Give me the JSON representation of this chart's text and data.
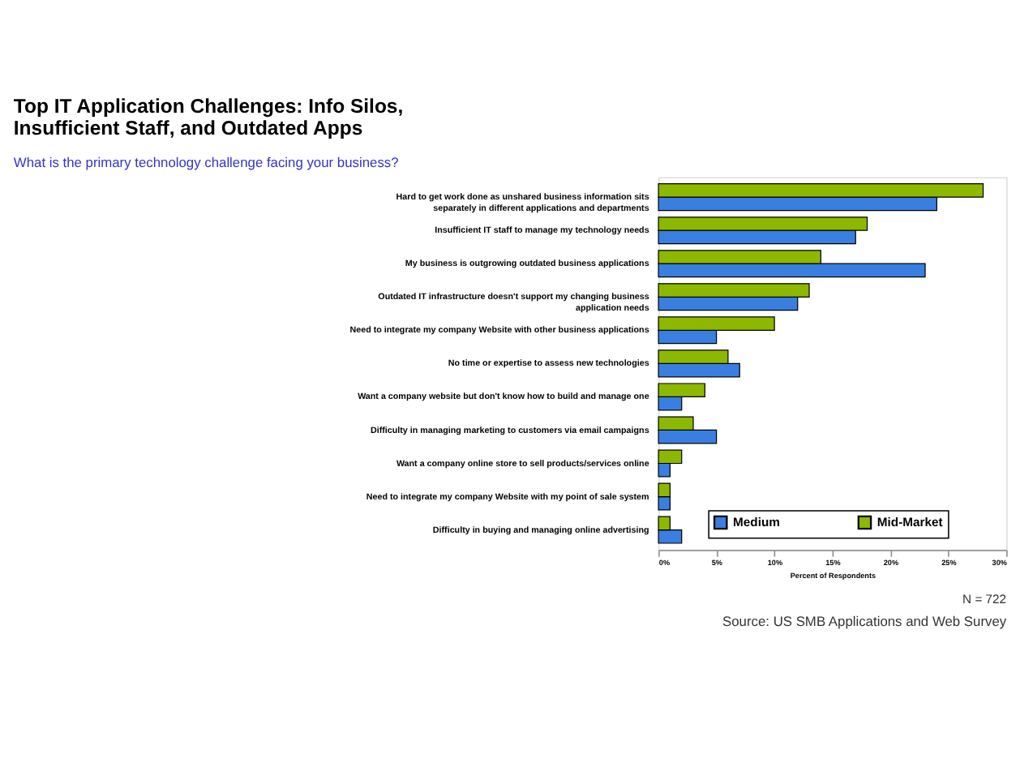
{
  "chart_data": {
    "type": "bar",
    "orientation": "horizontal",
    "title": [
      "Top IT Application Challenges: Info Silos,",
      "Insufficient Staff, and Outdated Apps"
    ],
    "subtitle": "What is the primary technology challenge facing your business?",
    "categories": [
      "Hard to get work done as unshared business information sits\nseparately in different applications and departments",
      "Insufficient IT staff to manage my technology needs",
      "My business is outgrowing outdated business applications",
      "Outdated IT infrastructure doesn't support my changing business\napplication needs",
      "Need to integrate my company Website with other business applications",
      "No time or expertise to assess new technologies",
      "Want a company website but don't know how to build and manage one",
      "Difficulty in managing marketing to customers via email campaigns",
      "Want a company online store to sell products/services online",
      "Need to integrate my company Website with my point of sale system",
      "Difficulty in buying and managing online advertising"
    ],
    "series": [
      {
        "name": "Medium",
        "color": "#3a7ee0",
        "values": [
          24,
          17,
          23,
          12,
          5,
          7,
          2,
          5,
          1,
          1,
          2
        ]
      },
      {
        "name": "Mid-Market",
        "color": "#8cb800",
        "values": [
          28,
          18,
          14,
          13,
          10,
          6,
          4,
          3,
          2,
          1,
          1
        ]
      }
    ],
    "xlabel": "Percent of Respondents",
    "xlim": [
      0,
      30
    ],
    "xticks": [
      {
        "value": 0,
        "label": "0%"
      },
      {
        "value": 5,
        "label": "5%"
      },
      {
        "value": 10,
        "label": "10%"
      },
      {
        "value": 15,
        "label": "15%"
      },
      {
        "value": 20,
        "label": "20%"
      },
      {
        "value": 25,
        "label": "25%"
      },
      {
        "value": 30,
        "label": "30%"
      }
    ],
    "grid": false,
    "legend": "bottom",
    "annotations": [
      "N = 722",
      "Source: US SMB Applications and Web Survey"
    ]
  }
}
